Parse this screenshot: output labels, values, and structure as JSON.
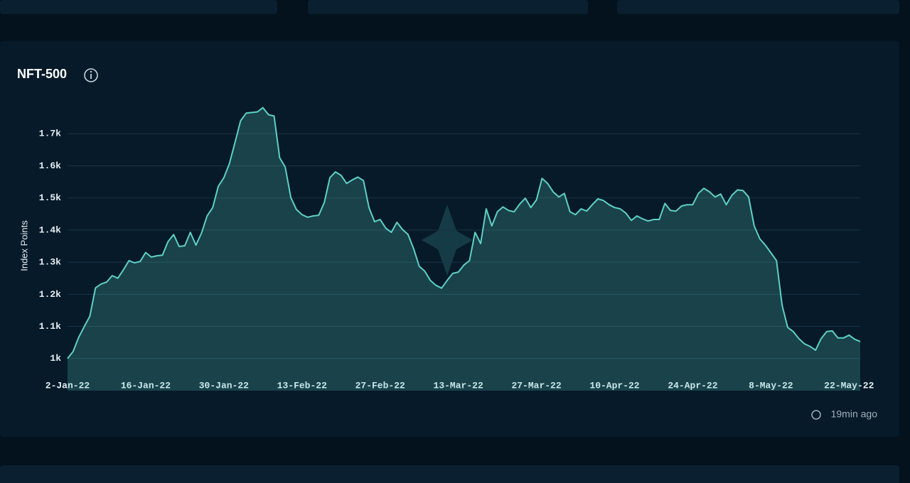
{
  "chart_data": {
    "type": "line",
    "title": "NFT-500",
    "y_label": "Index Points",
    "updated": "19min ago",
    "categories": [
      "2-Jan-22",
      null,
      null,
      null,
      null,
      null,
      null,
      null,
      null,
      null,
      null,
      null,
      null,
      null,
      "16-Jan-22",
      null,
      null,
      null,
      null,
      null,
      null,
      null,
      null,
      null,
      null,
      null,
      null,
      null,
      "30-Jan-22",
      null,
      null,
      null,
      null,
      null,
      null,
      null,
      null,
      null,
      null,
      null,
      null,
      null,
      "13-Feb-22",
      null,
      null,
      null,
      null,
      null,
      null,
      null,
      null,
      null,
      null,
      null,
      null,
      null,
      "27-Feb-22",
      null,
      null,
      null,
      null,
      null,
      null,
      null,
      null,
      null,
      null,
      null,
      null,
      null,
      "13-Mar-22",
      null,
      null,
      null,
      null,
      null,
      null,
      null,
      null,
      null,
      null,
      null,
      null,
      null,
      "27-Mar-22",
      null,
      null,
      null,
      null,
      null,
      null,
      null,
      null,
      null,
      null,
      null,
      null,
      null,
      "10-Apr-22",
      null,
      null,
      null,
      null,
      null,
      null,
      null,
      null,
      null,
      null,
      null,
      null,
      null,
      "24-Apr-22",
      null,
      null,
      null,
      null,
      null,
      null,
      null,
      null,
      null,
      null,
      null,
      null,
      null,
      "8-May-22",
      null,
      null,
      null,
      null,
      null,
      null,
      null,
      null,
      null,
      null,
      null,
      null,
      null,
      "22-May-22",
      null,
      null
    ],
    "series": [
      {
        "name": "NFT-500",
        "color": "#5fd0c5",
        "values": [
          1000,
          1022,
          1066,
          1100,
          1132,
          1220,
          1232,
          1238,
          1258,
          1250,
          1276,
          1305,
          1298,
          1302,
          1330,
          1316,
          1320,
          1322,
          1364,
          1386,
          1349,
          1351,
          1393,
          1353,
          1391,
          1444,
          1470,
          1536,
          1563,
          1607,
          1673,
          1740,
          1764,
          1766,
          1768,
          1781,
          1759,
          1755,
          1625,
          1596,
          1501,
          1464,
          1448,
          1440,
          1444,
          1446,
          1486,
          1563,
          1581,
          1570,
          1545,
          1556,
          1565,
          1554,
          1470,
          1426,
          1433,
          1406,
          1393,
          1424,
          1402,
          1386,
          1342,
          1287,
          1272,
          1243,
          1228,
          1219,
          1243,
          1265,
          1269,
          1291,
          1305,
          1393,
          1358,
          1466,
          1413,
          1457,
          1472,
          1461,
          1457,
          1481,
          1499,
          1470,
          1494,
          1561,
          1545,
          1519,
          1503,
          1514,
          1457,
          1448,
          1466,
          1459,
          1479,
          1497,
          1492,
          1479,
          1470,
          1466,
          1453,
          1430,
          1444,
          1435,
          1428,
          1433,
          1433,
          1483,
          1461,
          1459,
          1475,
          1479,
          1479,
          1514,
          1530,
          1519,
          1503,
          1512,
          1479,
          1508,
          1525,
          1523,
          1503,
          1413,
          1373,
          1353,
          1329,
          1305,
          1166,
          1097,
          1084,
          1062,
          1046,
          1038,
          1026,
          1062,
          1084,
          1086,
          1064,
          1064,
          1073,
          1060,
          1053
        ]
      }
    ],
    "ylim": [
      900,
      1800
    ],
    "yticks": [
      {
        "value": 1000,
        "label": "1k"
      },
      {
        "value": 1100,
        "label": "1.1k"
      },
      {
        "value": 1200,
        "label": "1.2k"
      },
      {
        "value": 1300,
        "label": "1.3k"
      },
      {
        "value": 1400,
        "label": "1.4k"
      },
      {
        "value": 1500,
        "label": "1.5k"
      },
      {
        "value": 1600,
        "label": "1.6k"
      },
      {
        "value": 1700,
        "label": "1.7k"
      }
    ],
    "grid": true
  }
}
